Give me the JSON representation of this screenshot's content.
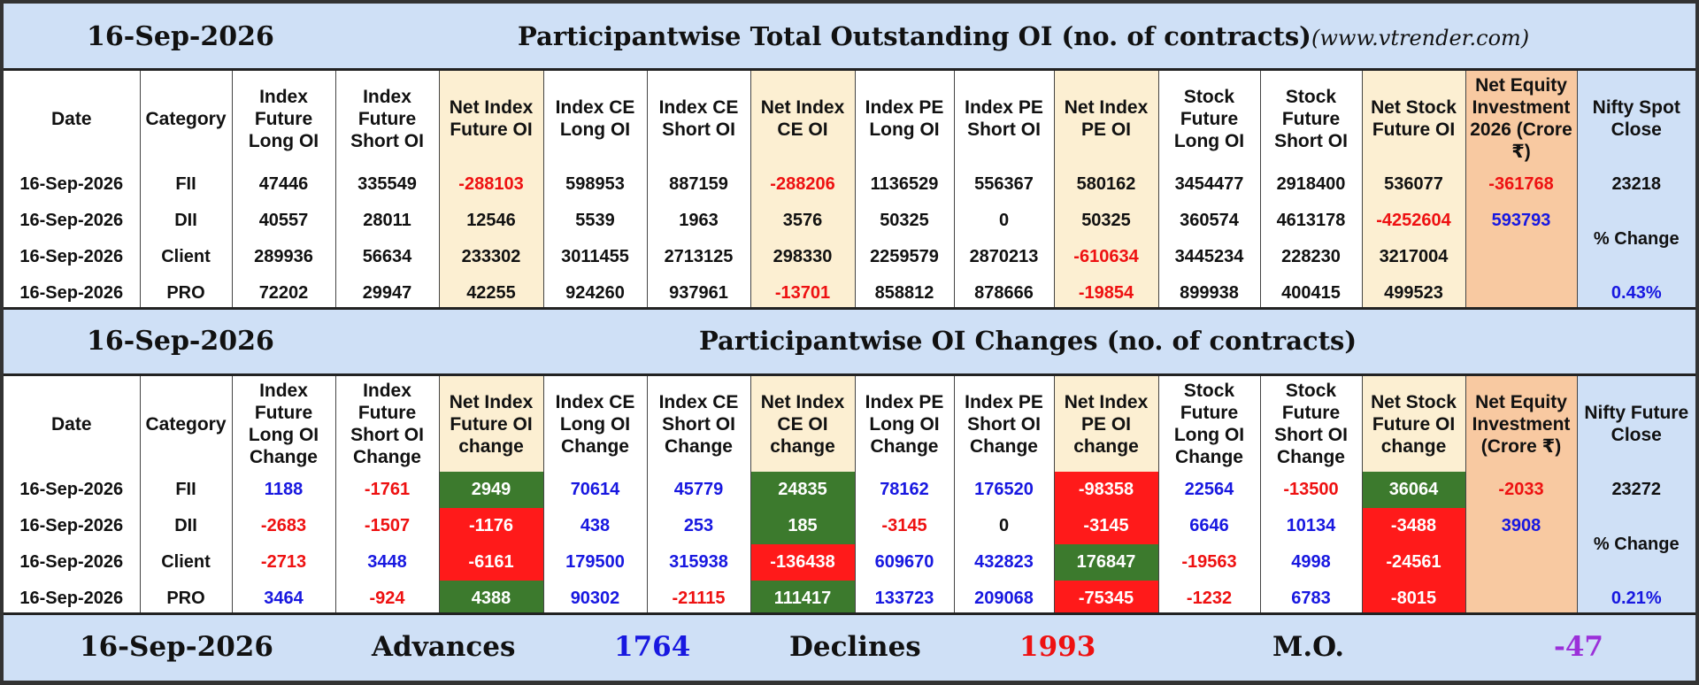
{
  "header1": {
    "date": "16-Sep-2026",
    "title": "Participantwise Total Outstanding OI (no. of contracts)",
    "site": "(www.vtrender.com)"
  },
  "header2": {
    "date": "16-Sep-2026",
    "title": "Participantwise OI Changes (no. of contracts)"
  },
  "table1": {
    "columns": [
      "Date",
      "Category",
      "Index Future Long OI",
      "Index Future Short OI",
      "Net Index Future OI",
      "Index CE Long OI",
      "Index CE Short OI",
      "Net Index CE OI",
      "Index PE Long OI",
      "Index PE Short OI",
      "Net Index PE OI",
      "Stock Future Long OI",
      "Stock Future Short OI",
      "Net Stock Future OI",
      "Net Equity Investment 2026 (Crore ₹)",
      "Nifty Spot Close"
    ],
    "rows": [
      [
        "16-Sep-2026",
        "FII",
        "47446",
        "335549",
        "-288103",
        "598953",
        "887159",
        "-288206",
        "1136529",
        "556367",
        "580162",
        "3454477",
        "2918400",
        "536077"
      ],
      [
        "16-Sep-2026",
        "DII",
        "40557",
        "28011",
        "12546",
        "5539",
        "1963",
        "3576",
        "50325",
        "0",
        "50325",
        "360574",
        "4613178",
        "-4252604"
      ],
      [
        "16-Sep-2026",
        "Client",
        "289936",
        "56634",
        "233302",
        "3011455",
        "2713125",
        "298330",
        "2259579",
        "2870213",
        "-610634",
        "3445234",
        "228230",
        "3217004"
      ],
      [
        "16-Sep-2026",
        "PRO",
        "72202",
        "29947",
        "42255",
        "924260",
        "937961",
        "-13701",
        "858812",
        "878666",
        "-19854",
        "899938",
        "400415",
        "499523"
      ]
    ],
    "equity": [
      "-361768",
      "593793"
    ],
    "nifty_value": "23218",
    "pct_label": "% Change",
    "pct_value": "0.43%"
  },
  "table2": {
    "columns": [
      "Date",
      "Category",
      "Index Future Long OI Change",
      "Index Future Short OI Change",
      "Net Index Future OI change",
      "Index CE Long OI Change",
      "Index CE Short OI Change",
      "Net Index CE OI change",
      "Index PE Long OI Change",
      "Index PE Short OI Change",
      "Net Index PE OI change",
      "Stock Future Long OI Change",
      "Stock Future Short OI Change",
      "Net Stock Future OI change",
      "Net Equity Investment (Crore ₹)",
      "Nifty Future Close"
    ],
    "rows": [
      [
        "16-Sep-2026",
        "FII",
        "1188",
        "-1761",
        "2949",
        "70614",
        "45779",
        "24835",
        "78162",
        "176520",
        "-98358",
        "22564",
        "-13500",
        "36064"
      ],
      [
        "16-Sep-2026",
        "DII",
        "-2683",
        "-1507",
        "-1176",
        "438",
        "253",
        "185",
        "-3145",
        "0",
        "-3145",
        "6646",
        "10134",
        "-3488"
      ],
      [
        "16-Sep-2026",
        "Client",
        "-2713",
        "3448",
        "-6161",
        "179500",
        "315938",
        "-136438",
        "609670",
        "432823",
        "176847",
        "-19563",
        "4998",
        "-24561"
      ],
      [
        "16-Sep-2026",
        "PRO",
        "3464",
        "-924",
        "4388",
        "90302",
        "-21115",
        "111417",
        "133723",
        "209068",
        "-75345",
        "-1232",
        "6783",
        "-8015"
      ]
    ],
    "equity": [
      "-2033",
      "3908"
    ],
    "nifty_value": "23272",
    "pct_label": "% Change",
    "pct_value": "0.21%"
  },
  "summary": {
    "date": "16-Sep-2026",
    "advances_label": "Advances",
    "advances": "1764",
    "declines_label": "Declines",
    "declines": "1993",
    "mo_label": "M.O.",
    "mo": "-47"
  },
  "colors": {
    "positive_text": "#1818e0",
    "negative_text": "#ee1111",
    "positive_fill": "#3c7a2d",
    "negative_fill": "#ff1a1a",
    "mo_text": "#9b30d9"
  }
}
